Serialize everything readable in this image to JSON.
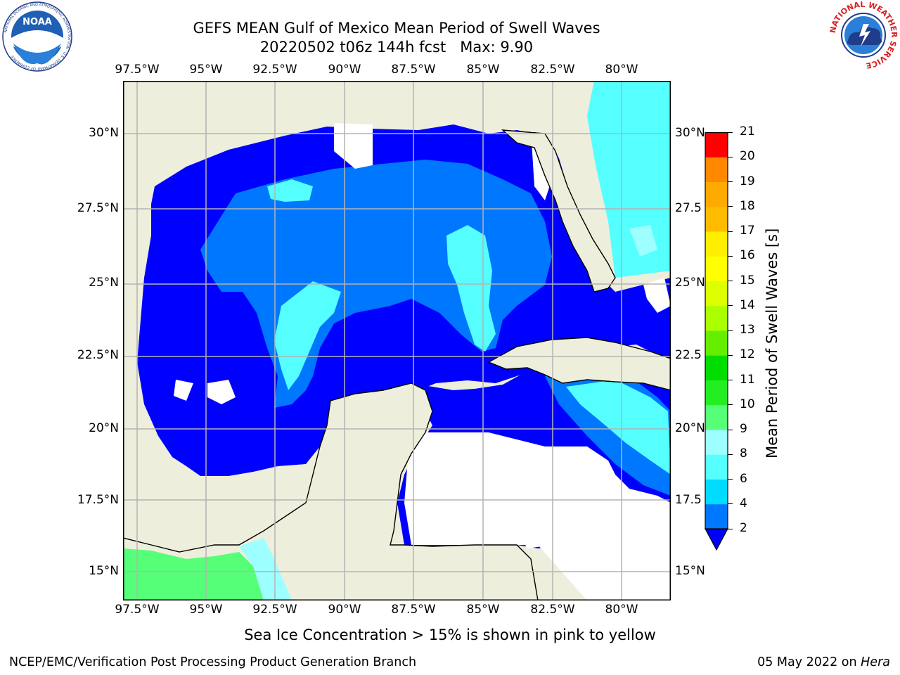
{
  "title": {
    "line1": "GEFS MEAN Gulf of Mexico Mean Period of Swell Waves",
    "line2": "20220502 t06z 144h fcst   Max: 9.90"
  },
  "logos": {
    "left": {
      "name": "noaa-logo",
      "text": "NOAA",
      "ring_text": "NATIONAL OCEANIC AND ATMOSPHERIC ADMINISTRATION · U.S. DEPARTMENT OF COMMERCE"
    },
    "right": {
      "name": "nws-logo",
      "ring_text": "NATIONAL WEATHER SERVICE"
    }
  },
  "map": {
    "lon_ticks": [
      "97.5°W",
      "95°W",
      "92.5°W",
      "90°W",
      "87.5°W",
      "85°W",
      "82.5°W",
      "80°W"
    ],
    "lon_values": [
      -97.5,
      -95,
      -92.5,
      -90,
      -87.5,
      -85,
      -82.5,
      -80
    ],
    "lat_ticks_left": [
      "30°N",
      "27.5°N",
      "25°N",
      "22.5°N",
      "20°N",
      "17.5°N",
      "15°N"
    ],
    "lat_ticks_right": [
      "30°N",
      "27.5",
      "25°N",
      "22.5",
      "20°N",
      "17.5",
      "15°N"
    ],
    "lat_values": [
      30,
      27.5,
      25,
      22.5,
      20,
      17.5,
      15
    ],
    "extent": {
      "lon_min": -98,
      "lon_max": -78.2,
      "lat_min": 14,
      "lat_max": 31.6
    },
    "colors": {
      "land": "#eeeedc",
      "grid": "#b3b3b3",
      "coast": "#000000"
    }
  },
  "colorbar": {
    "label": "Mean Period of Swell Waves [s]",
    "ticks": [
      "2",
      "4",
      "6",
      "8",
      "9",
      "10",
      "11",
      "12",
      "13",
      "14",
      "15",
      "16",
      "17",
      "18",
      "19",
      "20",
      "21"
    ],
    "colors": [
      "#0077ff",
      "#00dcff",
      "#55ffff",
      "#9dffff",
      "#55ff77",
      "#22ee22",
      "#00dd00",
      "#66ee00",
      "#aaff00",
      "#ddff00",
      "#ffff00",
      "#ffee00",
      "#ffbb00",
      "#ffaa00",
      "#ff8800",
      "#ff5500"
    ],
    "extend_color": "#0000ff",
    "top_color": "#ff0000"
  },
  "subtitle": "Sea Ice Concentration > 15% is shown in pink to yellow",
  "footer": {
    "left": "NCEP/EMC/Verification Post Processing Product Generation Branch",
    "date": "05 May 2022 on ",
    "machine": "Hera"
  }
}
